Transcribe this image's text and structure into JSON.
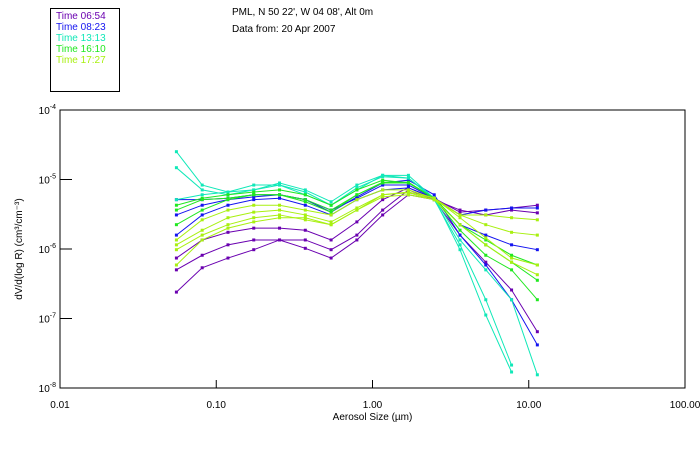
{
  "header": {
    "location": "PML, N 50 22', W 04 08', Alt 0m",
    "date": "Data from: 20 Apr 2007"
  },
  "chart_data": {
    "type": "line",
    "title": "PML, N 50 22', W 04 08', Alt 0m",
    "xlabel": "Aerosol Size (µm)",
    "ylabel": "dV/d(log R) (cm³/cm⁻³)",
    "xscale": "log",
    "yscale": "log",
    "xlim": [
      0.01,
      100
    ],
    "ylim_log10": [
      -8,
      -4
    ],
    "xticks": [
      "0.01",
      "0.10",
      "1.00",
      "10.00",
      "100.00"
    ],
    "yticks": [
      {
        "base": "10",
        "exp": "-4"
      },
      {
        "base": "10",
        "exp": "-5"
      },
      {
        "base": "10",
        "exp": "-6"
      },
      {
        "base": "10",
        "exp": "-7"
      },
      {
        "base": "10",
        "exp": "-8"
      }
    ],
    "legend_placement": "top-left outside",
    "legend": [
      {
        "label": "Time 06:54",
        "color": "#6a00b0"
      },
      {
        "label": "Time 08:23",
        "color": "#1414f0"
      },
      {
        "label": "Time 13:13",
        "color": "#10e8b8"
      },
      {
        "label": "Time 16:10",
        "color": "#20e820"
      },
      {
        "label": "Time 17:27",
        "color": "#a8f010"
      }
    ],
    "x_log10": [
      -1.255,
      -1.09,
      -0.925,
      -0.76,
      -0.595,
      -0.43,
      -0.265,
      -0.1,
      0.065,
      0.23,
      0.395,
      0.56,
      0.725,
      0.89,
      1.055
    ],
    "series": [
      {
        "group": 0,
        "values_log10": [
          -6.62,
          -6.27,
          -6.13,
          -6.01,
          -5.87,
          -5.87,
          -6.01,
          -5.8,
          -5.44,
          -5.15,
          -5.29,
          -5.8,
          -6.19,
          -6.59,
          -7.19
        ]
      },
      {
        "group": 0,
        "values_log10": [
          -6.13,
          -5.87,
          -5.76,
          -5.7,
          -5.7,
          -5.73,
          -5.87,
          -5.61,
          -5.29,
          -5.12,
          -5.27,
          -5.47,
          -5.44,
          -5.41,
          -5.37
        ]
      },
      {
        "group": 0,
        "values_log10": [
          -6.3,
          -6.09,
          -5.94,
          -5.87,
          -5.87,
          -5.99,
          -6.13,
          -5.87,
          -5.51,
          -5.22,
          -5.29,
          -5.44,
          -5.51,
          -5.44,
          -5.48
        ]
      },
      {
        "group": 1,
        "values_log10": [
          -5.51,
          -5.37,
          -5.29,
          -5.25,
          -5.22,
          -5.29,
          -5.44,
          -5.27,
          -5.08,
          -5.08,
          -5.27,
          -5.51,
          -5.44,
          -5.41,
          -5.41
        ]
      },
      {
        "group": 1,
        "values_log10": [
          -5.8,
          -5.51,
          -5.37,
          -5.29,
          -5.27,
          -5.37,
          -5.51,
          -5.29,
          -5.15,
          -5.12,
          -5.27,
          -5.65,
          -5.8,
          -5.94,
          -6.01
        ]
      },
      {
        "group": 1,
        "values_log10": [
          -5.29,
          -5.29,
          -5.27,
          -5.22,
          -5.22,
          -5.29,
          -5.47,
          -5.25,
          -5.05,
          -5.01,
          -5.22,
          -5.8,
          -6.23,
          -6.73,
          -7.38
        ]
      },
      {
        "group": 2,
        "values_log10": [
          -4.6,
          -5.08,
          -5.18,
          -5.15,
          -5.05,
          -5.15,
          -5.32,
          -5.08,
          -4.94,
          -4.98,
          -5.29,
          -5.94,
          -6.73,
          -7.67,
          null
        ]
      },
      {
        "group": 2,
        "values_log10": [
          -4.83,
          -5.15,
          -5.22,
          -5.15,
          -5.08,
          -5.18,
          -5.37,
          -5.12,
          -4.96,
          -4.98,
          -5.27,
          -6.01,
          -6.95,
          -7.77,
          null
        ]
      },
      {
        "group": 2,
        "values_log10": [
          -5.29,
          -5.22,
          -5.18,
          -5.08,
          -5.08,
          -5.22,
          -5.37,
          -5.15,
          -4.94,
          -4.94,
          -5.27,
          -5.87,
          -6.3,
          -6.73,
          -7.81
        ]
      },
      {
        "group": 3,
        "values_log10": [
          -5.37,
          -5.27,
          -5.22,
          -5.18,
          -5.15,
          -5.22,
          -5.37,
          -5.15,
          -5.01,
          -5.05,
          -5.27,
          -5.65,
          -5.87,
          -6.09,
          -6.23
        ]
      },
      {
        "group": 3,
        "values_log10": [
          -5.44,
          -5.29,
          -5.27,
          -5.22,
          -5.22,
          -5.29,
          -5.44,
          -5.22,
          -5.04,
          -5.04,
          -5.27,
          -5.65,
          -5.94,
          -6.19,
          -6.45
        ]
      },
      {
        "group": 3,
        "values_log10": [
          -5.65,
          -5.44,
          -5.29,
          -5.22,
          -5.22,
          -5.32,
          -5.47,
          -5.22,
          -5.05,
          -5.05,
          -5.27,
          -5.73,
          -6.09,
          -6.3,
          -6.73
        ]
      },
      {
        "group": 4,
        "values_log10": [
          -5.87,
          -5.58,
          -5.44,
          -5.37,
          -5.37,
          -5.44,
          -5.51,
          -5.29,
          -5.15,
          -5.15,
          -5.27,
          -5.51,
          -5.65,
          -5.76,
          -5.8
        ]
      },
      {
        "group": 4,
        "values_log10": [
          -5.94,
          -5.73,
          -5.55,
          -5.47,
          -5.44,
          -5.51,
          -5.61,
          -5.41,
          -5.22,
          -5.18,
          -5.27,
          -5.55,
          -5.84,
          -6.13,
          -6.23
        ]
      },
      {
        "group": 4,
        "values_log10": [
          -6.01,
          -5.8,
          -5.65,
          -5.55,
          -5.51,
          -5.58,
          -5.65,
          -5.44,
          -5.22,
          -5.19,
          -5.29,
          -5.65,
          -5.94,
          -6.19,
          -6.37
        ]
      },
      {
        "group": 4,
        "values_log10": [
          -6.23,
          -5.87,
          -5.7,
          -5.61,
          -5.55,
          -5.55,
          -5.65,
          -5.44,
          -5.25,
          -5.22,
          -5.29,
          -5.51,
          -5.51,
          -5.55,
          -5.58
        ]
      }
    ]
  }
}
